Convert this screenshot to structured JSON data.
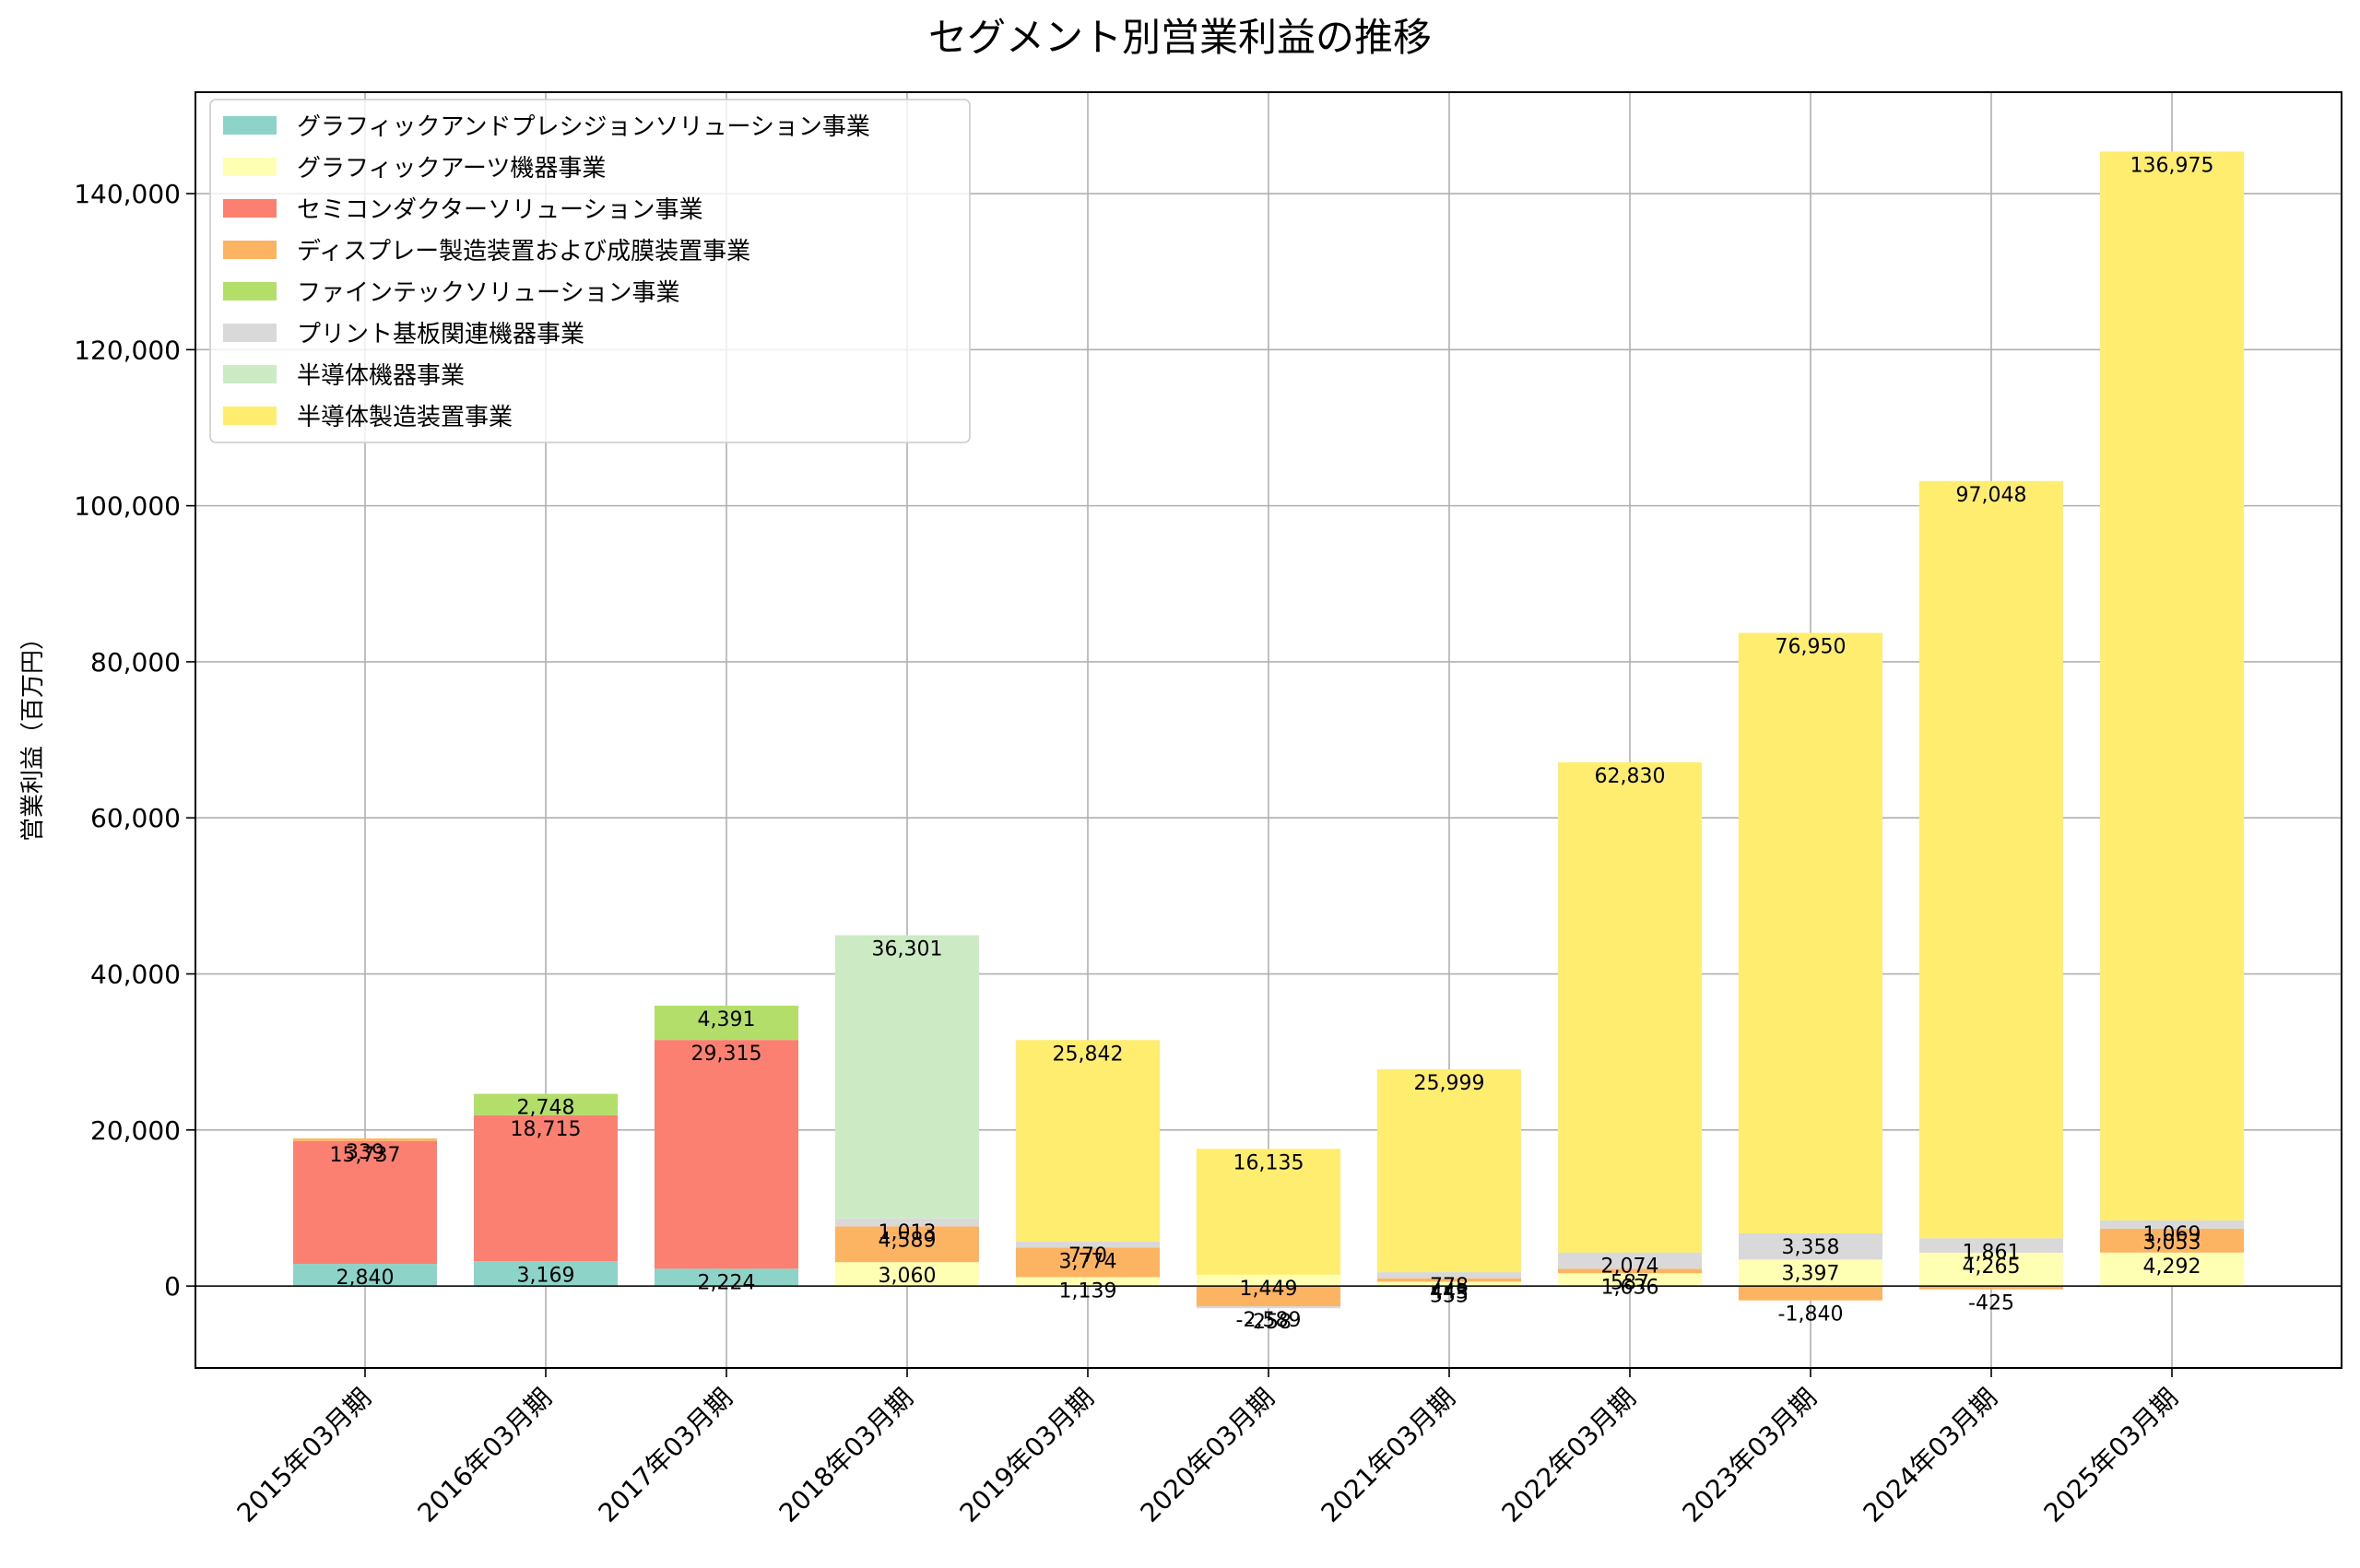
{
  "chart_data": {
    "type": "bar",
    "stacked": true,
    "title": "セグメント別営業利益の推移",
    "xlabel": "",
    "ylabel": "営業利益（百万円）",
    "ylim": [
      -10500,
      153000
    ],
    "yticks": [
      0,
      20000,
      40000,
      60000,
      80000,
      100000,
      120000,
      140000
    ],
    "ytick_labels": [
      "0",
      "20,000",
      "40,000",
      "60,000",
      "80,000",
      "100,000",
      "120,000",
      "140,000"
    ],
    "grid": true,
    "legend_position": "top-left",
    "categories": [
      "2015年03月期",
      "2016年03月期",
      "2017年03月期",
      "2018年03月期",
      "2019年03月期",
      "2020年03月期",
      "2021年03月期",
      "2022年03月期",
      "2023年03月期",
      "2024年03月期",
      "2025年03月期"
    ],
    "series": [
      {
        "name": "グラフィックアンドプレシジョンソリューション事業",
        "color": "#8dd3c7",
        "values": [
          2840,
          3169,
          2224,
          null,
          null,
          null,
          null,
          null,
          null,
          null,
          null
        ]
      },
      {
        "name": "グラフィックアーツ機器事業",
        "color": "#ffffb3",
        "values": [
          null,
          null,
          null,
          3060,
          1139,
          1449,
          555,
          1636,
          3397,
          4265,
          4292
        ]
      },
      {
        "name": "セミコンダクターソリューション事業",
        "color": "#fb8072",
        "values": [
          15737,
          18715,
          29315,
          null,
          null,
          null,
          null,
          null,
          null,
          null,
          null
        ]
      },
      {
        "name": "ディスプレー製造装置および成膜装置事業",
        "color": "#fdb462",
        "values": [
          339,
          null,
          null,
          4589,
          3774,
          -2589,
          443,
          587,
          -1840,
          -425,
          3053
        ]
      },
      {
        "name": "ファインテックソリューション事業",
        "color": "#b3de69",
        "values": [
          null,
          2748,
          4391,
          null,
          null,
          null,
          null,
          null,
          null,
          null,
          null
        ]
      },
      {
        "name": "プリント基板関連機器事業",
        "color": "#d9d9d9",
        "values": [
          null,
          null,
          null,
          1013,
          770,
          -258,
          778,
          2074,
          3358,
          1861,
          1069
        ]
      },
      {
        "name": "半導体機器事業",
        "color": "#ccebc5",
        "values": [
          null,
          null,
          null,
          36301,
          null,
          null,
          null,
          null,
          null,
          null,
          null
        ]
      },
      {
        "name": "半導体製造装置事業",
        "color": "#ffed6f",
        "values": [
          null,
          null,
          null,
          null,
          25842,
          16135,
          25999,
          62830,
          76950,
          97048,
          136975
        ]
      }
    ],
    "data_labels": [
      [
        "2,840",
        "",
        "15,737",
        "339",
        "",
        "",
        "",
        ""
      ],
      [
        "3,169",
        "",
        "18,715",
        "",
        "2,748",
        "",
        "",
        ""
      ],
      [
        "2,224",
        "",
        "29,315",
        "",
        "4,391",
        "",
        "",
        ""
      ],
      [
        "",
        "3,060",
        "",
        "4,589",
        "",
        "1,013",
        "36,301",
        ""
      ],
      [
        "",
        "1,139",
        "",
        "3,774",
        "",
        "770",
        "",
        "25,842"
      ],
      [
        "",
        "1,449",
        "",
        "-2,589",
        "",
        "-258",
        "",
        "16,135"
      ],
      [
        "",
        "555",
        "",
        "443",
        "",
        "778",
        "",
        "25,999"
      ],
      [
        "",
        "1,636",
        "",
        "587",
        "",
        "2,074",
        "",
        "62,830"
      ],
      [
        "",
        "3,397",
        "",
        "-1,840",
        "",
        "3,358",
        "",
        "76,950"
      ],
      [
        "",
        "4,265",
        "",
        "-425",
        "",
        "1,861",
        "",
        "97,048"
      ],
      [
        "",
        "4,292",
        "",
        "3,053",
        "",
        "1,069",
        "",
        "136,975"
      ]
    ]
  }
}
